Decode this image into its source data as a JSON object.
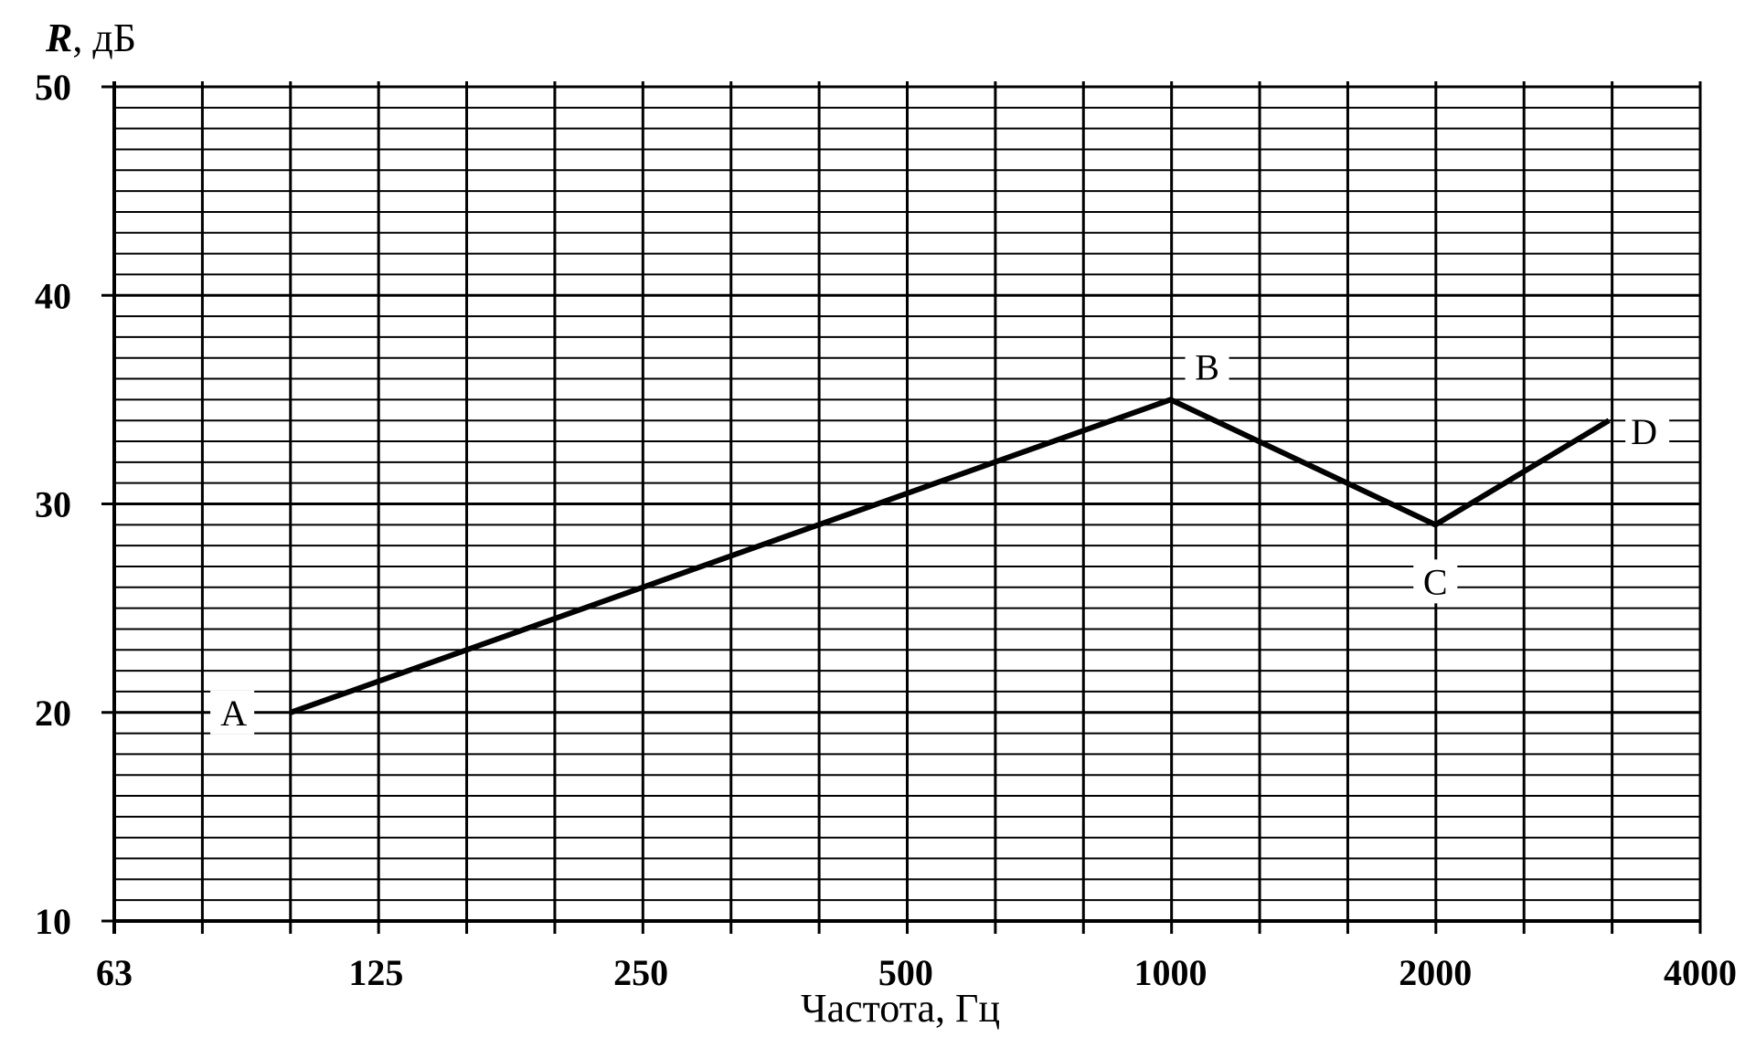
{
  "chart_data": {
    "type": "line",
    "title": "",
    "ylabel": {
      "symbol": "R",
      "unit": ", дБ"
    },
    "xlabel": "Частота,  Гц",
    "x_scale": "log",
    "xlim": [
      63,
      4000
    ],
    "ylim": [
      10,
      50
    ],
    "x_ticks": [
      "63",
      "125",
      "250",
      "500",
      "1000",
      "2000",
      "4000"
    ],
    "x_tick_values": [
      63,
      125,
      250,
      500,
      1000,
      2000,
      4000
    ],
    "y_ticks": [
      "10",
      "20",
      "30",
      "40",
      "50"
    ],
    "y_tick_values": [
      10,
      20,
      30,
      40,
      50
    ],
    "grid": true,
    "series": [
      {
        "points": [
          {
            "label": "A",
            "x": 100,
            "y": 20
          },
          {
            "label": "B",
            "x": 1000,
            "y": 35
          },
          {
            "label": "C",
            "x": 2000,
            "y": 29
          },
          {
            "label": "D",
            "x": 3150,
            "y": 34
          }
        ]
      }
    ]
  }
}
